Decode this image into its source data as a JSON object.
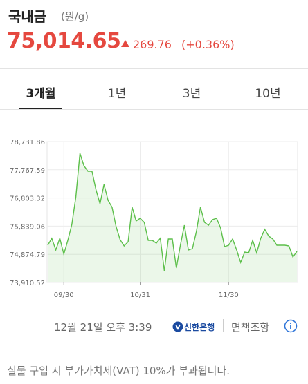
{
  "header": {
    "title": "국내금",
    "unit": "(원/g)",
    "price": "75,014.65",
    "change": "269.76",
    "change_pct": "(+0.36%)"
  },
  "tabs": [
    "3개월",
    "1년",
    "3년",
    "10년"
  ],
  "chart_data": {
    "type": "line",
    "categories": [
      null,
      null,
      null,
      null,
      "09/30",
      null,
      null,
      null,
      null,
      null,
      null,
      null,
      null,
      null,
      null,
      null,
      null,
      null,
      null,
      null,
      null,
      null,
      null,
      "10/31",
      null,
      null,
      null,
      null,
      null,
      null,
      null,
      null,
      null,
      null,
      null,
      null,
      null,
      null,
      null,
      null,
      null,
      null,
      null,
      null,
      null,
      "11/30",
      null,
      null,
      null,
      null,
      null,
      null,
      null,
      null,
      null,
      null,
      null,
      null,
      null,
      null,
      null,
      null,
      null
    ],
    "series": [
      {
        "name": "국내금",
        "color": "#5cbf4a",
        "values": [
          75186.8,
          75423.1,
          75021.4,
          75423.1,
          74879.6,
          75352.2,
          75895.8,
          76841.2,
          78330.1,
          77904.7,
          77715.6,
          77715.6,
          77077.5,
          76604.8,
          77266.6,
          76723.0,
          76486.7,
          75824.9,
          75375.9,
          75163.2,
          75305.0,
          76486.7,
          76014.0,
          76108.5,
          75966.7,
          75352.2,
          75352.2,
          75257.7,
          75423.1,
          74312.3,
          75399.5,
          75399.5,
          74406.9,
          75186.8,
          75872.2,
          75021.4,
          75068.6,
          75659.5,
          76486.7,
          75966.7,
          75872.2,
          76061.3,
          76108.5,
          75777.6,
          75139.5,
          75186.8,
          75399.5,
          75021.4,
          74595.9,
          74950.5,
          74926.8,
          75352.2,
          74926.8,
          75423.1,
          75730.4,
          75494.0,
          75399.5,
          75186.8,
          75186.8,
          75186.8,
          75163.2,
          74785.0,
          74974.1
        ]
      }
    ],
    "ylim": [
      73910.52,
      78731.86
    ],
    "yticks": [
      {
        "value": 73910.52,
        "label": "73,910.52"
      },
      {
        "value": 74874.79,
        "label": "74,874.79"
      },
      {
        "value": 75839.06,
        "label": "75,839.06"
      },
      {
        "value": 76803.32,
        "label": "76,803.32"
      },
      {
        "value": 77767.59,
        "label": "77,767.59"
      },
      {
        "value": 78731.86,
        "label": "78,731.86"
      }
    ],
    "grid": true
  },
  "footer": {
    "timestamp": "12월 21일 오후 3:39",
    "bank": "신한은행",
    "disclaimer": "면책조항",
    "notice": "실물 구입 시 부가가치세(VAT) 10%가 부과됩니다."
  }
}
